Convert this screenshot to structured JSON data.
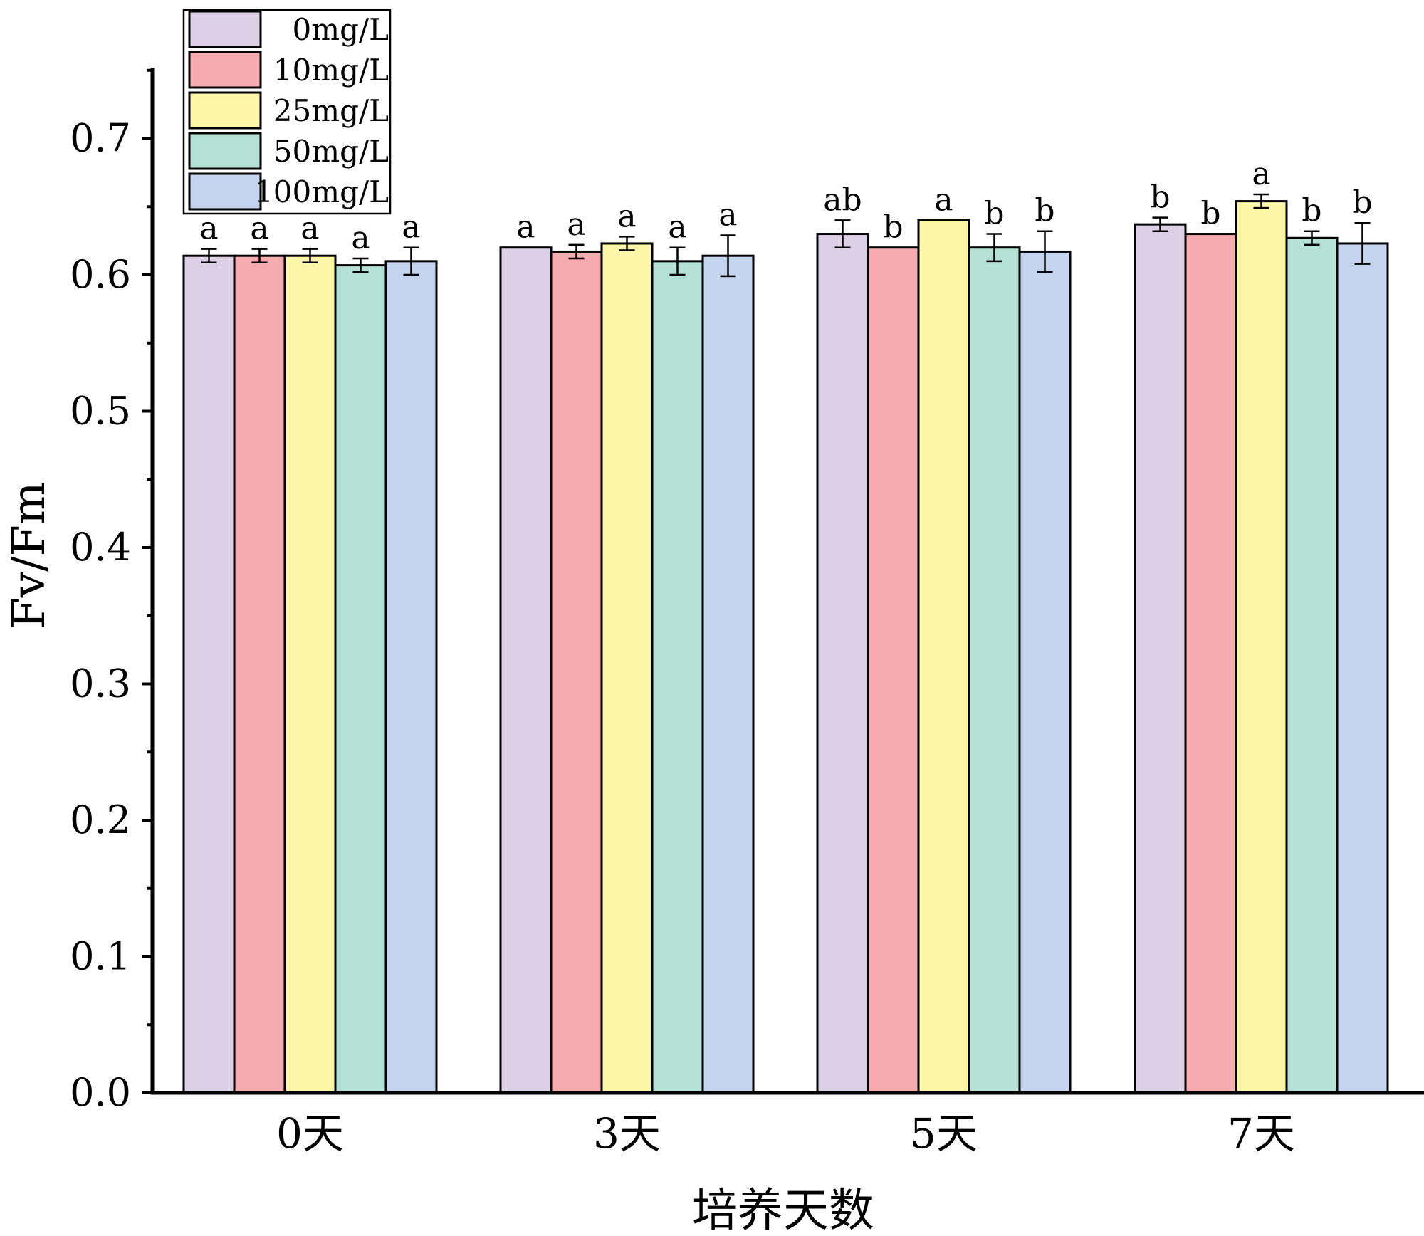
{
  "chart_data": {
    "type": "bar",
    "xlabel": "培养天数",
    "ylabel": "Fv/Fm",
    "ylim": [
      0,
      0.75
    ],
    "yticks": [
      0.0,
      0.1,
      0.2,
      0.3,
      0.4,
      0.5,
      0.6,
      0.7
    ],
    "ytick_labels": [
      "0.0",
      "0.1",
      "0.2",
      "0.3",
      "0.4",
      "0.5",
      "0.6",
      "0.7"
    ],
    "categories": [
      "0天",
      "3天",
      "5天",
      "7天"
    ],
    "legend_position": "top-left",
    "grid": false,
    "series": [
      {
        "name": "0mg/L",
        "color": "#ddd0e6",
        "values": [
          0.614,
          0.62,
          0.63,
          0.637
        ],
        "errors": [
          0.005,
          0.0,
          0.01,
          0.005
        ],
        "sig": [
          "a",
          "a",
          "ab",
          "b"
        ]
      },
      {
        "name": "10mg/L",
        "color": "#f6abb0",
        "values": [
          0.614,
          0.617,
          0.62,
          0.63
        ],
        "errors": [
          0.005,
          0.005,
          0.0,
          0.0
        ],
        "sig": [
          "a",
          "a",
          "b",
          "b"
        ]
      },
      {
        "name": "25mg/L",
        "color": "#fdf5a8",
        "values": [
          0.614,
          0.623,
          0.64,
          0.654
        ],
        "errors": [
          0.005,
          0.005,
          0.0,
          0.005
        ],
        "sig": [
          "a",
          "a",
          "a",
          "a"
        ]
      },
      {
        "name": "50mg/L",
        "color": "#b5e0d6",
        "values": [
          0.607,
          0.61,
          0.62,
          0.627
        ],
        "errors": [
          0.005,
          0.01,
          0.01,
          0.005
        ],
        "sig": [
          "a",
          "a",
          "b",
          "b"
        ]
      },
      {
        "name": "100mg/L",
        "color": "#c4d4ef",
        "values": [
          0.61,
          0.614,
          0.617,
          0.623
        ],
        "errors": [
          0.01,
          0.015,
          0.015,
          0.015
        ],
        "sig": [
          "a",
          "a",
          "b",
          "b"
        ]
      }
    ]
  }
}
